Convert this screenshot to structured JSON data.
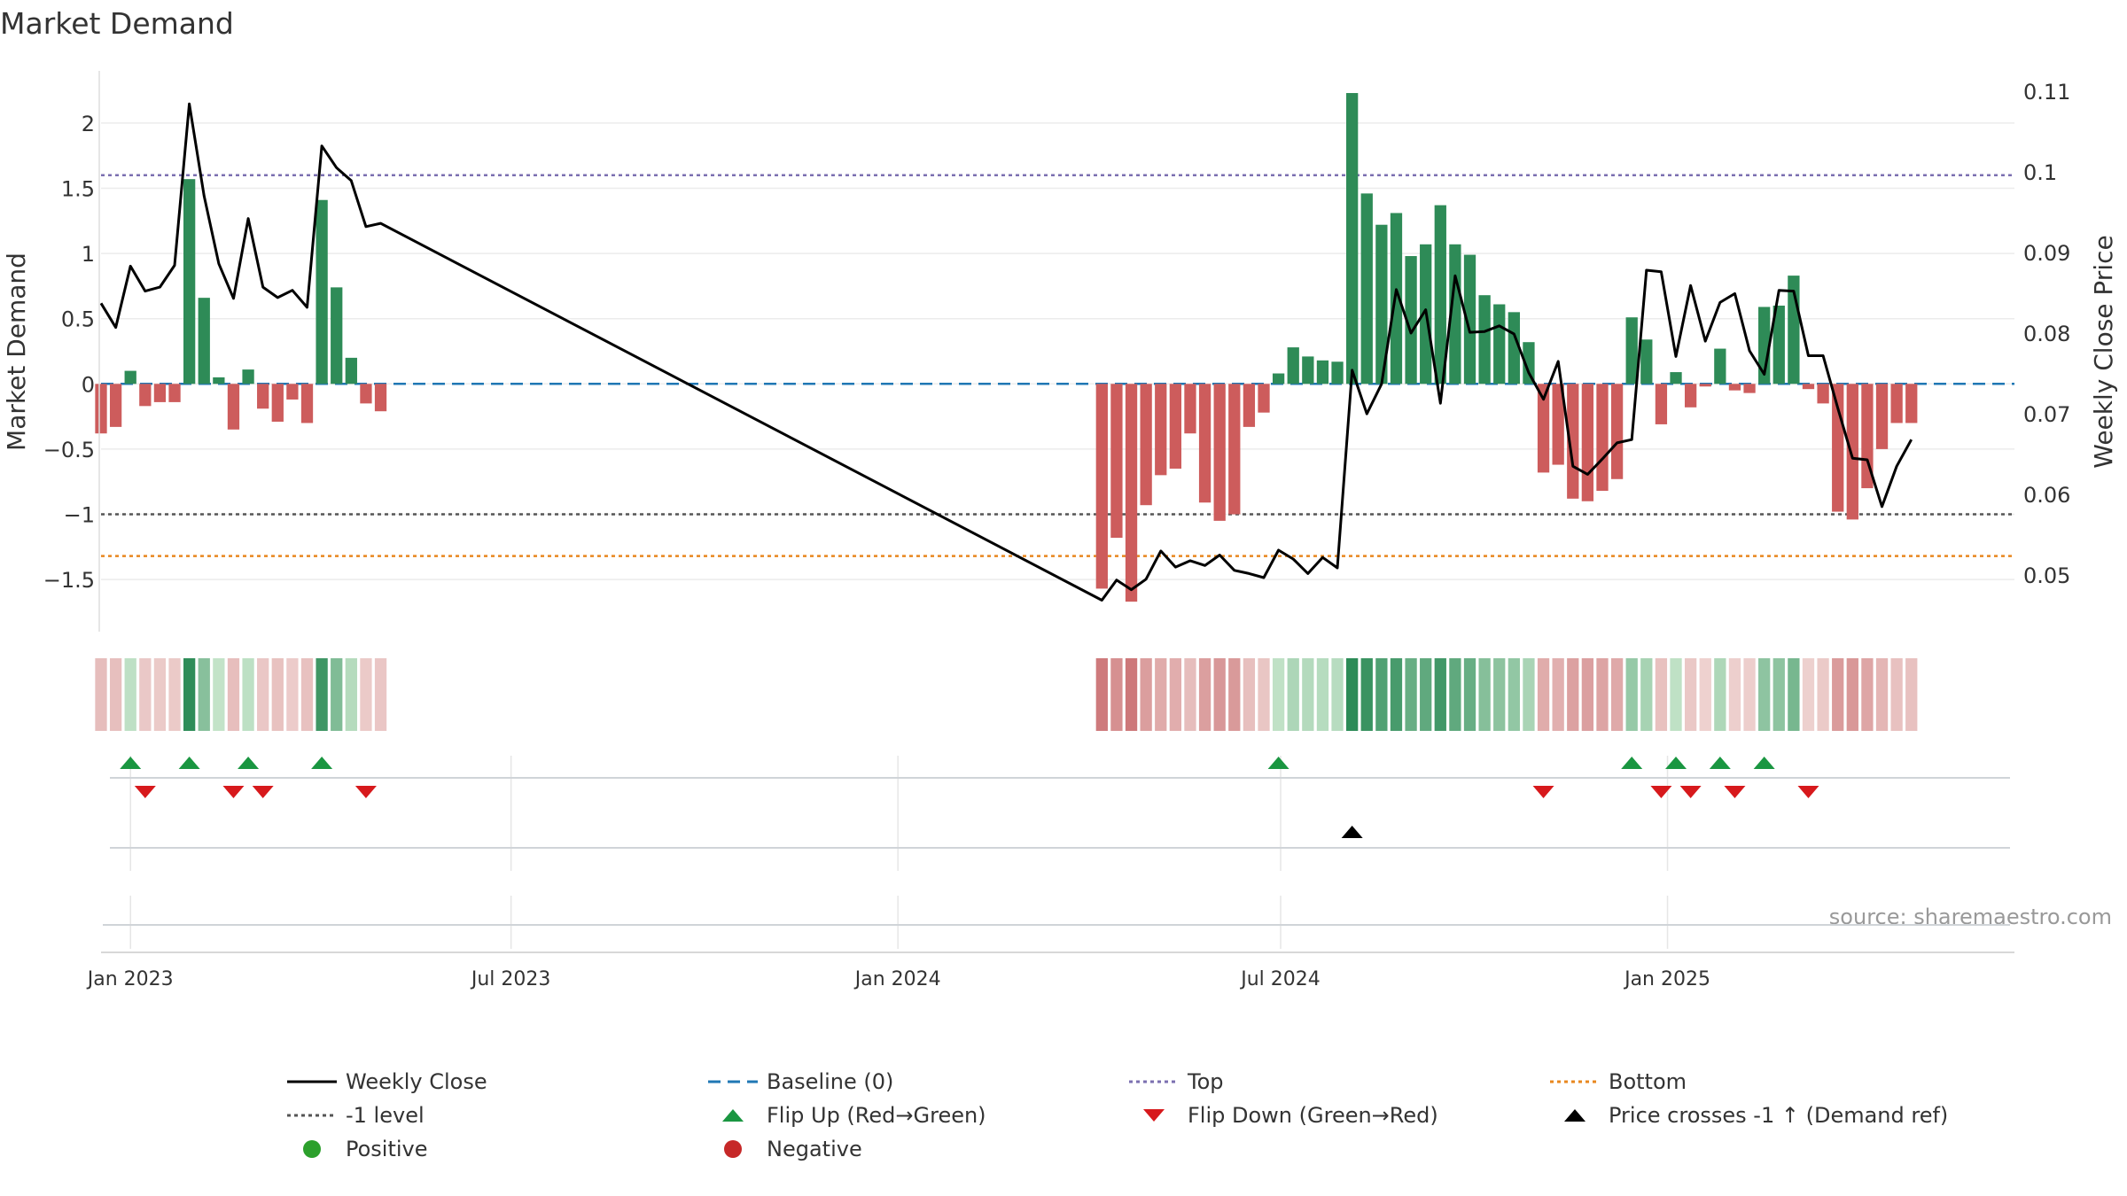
{
  "chart_data": {
    "type": "bar",
    "title": "Market Demand",
    "ylabel": "Market Demand",
    "y2label": "Weekly Close Price",
    "source": "source: sharemaestro.com",
    "ylim": [
      -1.9,
      2.4
    ],
    "y2lim": [
      0.043,
      0.1125
    ],
    "yticks": [
      {
        "v": 2,
        "label": "2"
      },
      {
        "v": 1.5,
        "label": "1.5"
      },
      {
        "v": 1,
        "label": "1"
      },
      {
        "v": 0.5,
        "label": "0.5"
      },
      {
        "v": 0,
        "label": "0"
      },
      {
        "v": -0.5,
        "label": "−0.5"
      },
      {
        "v": -1,
        "label": "−1"
      },
      {
        "v": -1.5,
        "label": "−1.5"
      }
    ],
    "y2ticks": [
      {
        "v": 0.11,
        "label": "0.11"
      },
      {
        "v": 0.1,
        "label": "0.1"
      },
      {
        "v": 0.09,
        "label": "0.09"
      },
      {
        "v": 0.08,
        "label": "0.08"
      },
      {
        "v": 0.07,
        "label": "0.07"
      },
      {
        "v": 0.06,
        "label": "0.06"
      },
      {
        "v": 0.05,
        "label": "0.05"
      }
    ],
    "xrange": [
      "2022-12-18",
      "2025-06-15"
    ],
    "xticks": [
      {
        "date": "2023-01-01",
        "label": "Jan 2023"
      },
      {
        "date": "2023-07-01",
        "label": "Jul 2023"
      },
      {
        "date": "2024-01-01",
        "label": "Jan 2024"
      },
      {
        "date": "2024-07-01",
        "label": "Jul 2024"
      },
      {
        "date": "2025-01-01",
        "label": "Jan 2025"
      }
    ],
    "reference_lines": [
      {
        "name": "Baseline (0)",
        "value": 0,
        "color": "#1f77b4",
        "style": "dashed"
      },
      {
        "name": "Top",
        "value": 1.6,
        "color": "#7b6fb0",
        "style": "dotted"
      },
      {
        "name": "-1 level",
        "value": -1,
        "color": "#555555",
        "style": "dotted"
      },
      {
        "name": "Bottom",
        "value": -1.32,
        "color": "#e8871e",
        "style": "dotted"
      }
    ],
    "colors": {
      "positive": "#2e8b57",
      "negative": "#cd5c5c",
      "close": "#000000",
      "flip_up": "#1a9641",
      "flip_down": "#d7191c",
      "cross": "#000000"
    },
    "weeks": [
      {
        "date": "2022-12-18",
        "demand": -0.38,
        "close": 0.0837
      },
      {
        "date": "2022-12-25",
        "demand": -0.33,
        "close": 0.0807
      },
      {
        "date": "2023-01-01",
        "demand": 0.1,
        "close": 0.0883
      },
      {
        "date": "2023-01-08",
        "demand": -0.17,
        "close": 0.0852
      },
      {
        "date": "2023-01-15",
        "demand": -0.14,
        "close": 0.0857
      },
      {
        "date": "2023-01-22",
        "demand": -0.14,
        "close": 0.0884
      },
      {
        "date": "2023-01-29",
        "demand": 1.57,
        "close": 0.1084
      },
      {
        "date": "2023-02-05",
        "demand": 0.66,
        "close": 0.097
      },
      {
        "date": "2023-02-12",
        "demand": 0.05,
        "close": 0.0886
      },
      {
        "date": "2023-02-19",
        "demand": -0.35,
        "close": 0.0843
      },
      {
        "date": "2023-02-26",
        "demand": 0.11,
        "close": 0.0942
      },
      {
        "date": "2023-03-05",
        "demand": -0.19,
        "close": 0.0857
      },
      {
        "date": "2023-03-12",
        "demand": -0.29,
        "close": 0.0844
      },
      {
        "date": "2023-03-19",
        "demand": -0.12,
        "close": 0.0853
      },
      {
        "date": "2023-03-26",
        "demand": -0.3,
        "close": 0.0832
      },
      {
        "date": "2023-04-02",
        "demand": 1.41,
        "close": 0.1032
      },
      {
        "date": "2023-04-09",
        "demand": 0.74,
        "close": 0.1005
      },
      {
        "date": "2023-04-16",
        "demand": 0.2,
        "close": 0.0989
      },
      {
        "date": "2023-04-23",
        "demand": -0.15,
        "close": 0.0932
      },
      {
        "date": "2023-04-30",
        "demand": -0.21,
        "close": 0.0936
      },
      {
        "date": "2024-04-07",
        "demand": -1.57,
        "close": 0.0469
      },
      {
        "date": "2024-04-14",
        "demand": -1.18,
        "close": 0.0494
      },
      {
        "date": "2024-04-21",
        "demand": -1.67,
        "close": 0.0482
      },
      {
        "date": "2024-04-28",
        "demand": -0.93,
        "close": 0.0495
      },
      {
        "date": "2024-05-05",
        "demand": -0.7,
        "close": 0.053
      },
      {
        "date": "2024-05-12",
        "demand": -0.65,
        "close": 0.051
      },
      {
        "date": "2024-05-19",
        "demand": -0.38,
        "close": 0.0518
      },
      {
        "date": "2024-05-26",
        "demand": -0.91,
        "close": 0.0512
      },
      {
        "date": "2024-06-02",
        "demand": -1.05,
        "close": 0.0525
      },
      {
        "date": "2024-06-09",
        "demand": -1.0,
        "close": 0.0506
      },
      {
        "date": "2024-06-16",
        "demand": -0.33,
        "close": 0.0502
      },
      {
        "date": "2024-06-23",
        "demand": -0.22,
        "close": 0.0497
      },
      {
        "date": "2024-06-30",
        "demand": 0.08,
        "close": 0.0531
      },
      {
        "date": "2024-07-07",
        "demand": 0.28,
        "close": 0.052
      },
      {
        "date": "2024-07-14",
        "demand": 0.21,
        "close": 0.0502
      },
      {
        "date": "2024-07-21",
        "demand": 0.18,
        "close": 0.0522
      },
      {
        "date": "2024-07-28",
        "demand": 0.17,
        "close": 0.0509
      },
      {
        "date": "2024-08-04",
        "demand": 2.23,
        "close": 0.0754
      },
      {
        "date": "2024-08-11",
        "demand": 1.46,
        "close": 0.07
      },
      {
        "date": "2024-08-18",
        "demand": 1.22,
        "close": 0.0737
      },
      {
        "date": "2024-08-25",
        "demand": 1.31,
        "close": 0.0854
      },
      {
        "date": "2024-09-01",
        "demand": 0.98,
        "close": 0.08
      },
      {
        "date": "2024-09-08",
        "demand": 1.07,
        "close": 0.0829
      },
      {
        "date": "2024-09-15",
        "demand": 1.37,
        "close": 0.0713
      },
      {
        "date": "2024-09-22",
        "demand": 1.07,
        "close": 0.0871
      },
      {
        "date": "2024-09-29",
        "demand": 0.99,
        "close": 0.0801
      },
      {
        "date": "2024-10-06",
        "demand": 0.68,
        "close": 0.0802
      },
      {
        "date": "2024-10-13",
        "demand": 0.61,
        "close": 0.0809
      },
      {
        "date": "2024-10-20",
        "demand": 0.55,
        "close": 0.0799
      },
      {
        "date": "2024-10-27",
        "demand": 0.32,
        "close": 0.0751
      },
      {
        "date": "2024-11-03",
        "demand": -0.68,
        "close": 0.0718
      },
      {
        "date": "2024-11-10",
        "demand": -0.62,
        "close": 0.0765
      },
      {
        "date": "2024-11-17",
        "demand": -0.88,
        "close": 0.0635
      },
      {
        "date": "2024-11-24",
        "demand": -0.9,
        "close": 0.0625
      },
      {
        "date": "2024-12-01",
        "demand": -0.82,
        "close": 0.0644
      },
      {
        "date": "2024-12-08",
        "demand": -0.73,
        "close": 0.0664
      },
      {
        "date": "2024-12-15",
        "demand": 0.51,
        "close": 0.0668
      },
      {
        "date": "2024-12-22",
        "demand": 0.34,
        "close": 0.0878
      },
      {
        "date": "2024-12-29",
        "demand": -0.31,
        "close": 0.0876
      },
      {
        "date": "2025-01-05",
        "demand": 0.09,
        "close": 0.0771
      },
      {
        "date": "2025-01-12",
        "demand": -0.18,
        "close": 0.0859
      },
      {
        "date": "2025-01-19",
        "demand": -0.02,
        "close": 0.079
      },
      {
        "date": "2025-01-26",
        "demand": 0.27,
        "close": 0.0838
      },
      {
        "date": "2025-02-02",
        "demand": -0.05,
        "close": 0.0849
      },
      {
        "date": "2025-02-09",
        "demand": -0.07,
        "close": 0.0778
      },
      {
        "date": "2025-02-16",
        "demand": 0.59,
        "close": 0.0749
      },
      {
        "date": "2025-02-23",
        "demand": 0.6,
        "close": 0.0853
      },
      {
        "date": "2025-03-02",
        "demand": 0.83,
        "close": 0.0852
      },
      {
        "date": "2025-03-09",
        "demand": -0.04,
        "close": 0.0772
      },
      {
        "date": "2025-03-16",
        "demand": -0.15,
        "close": 0.0772
      },
      {
        "date": "2025-03-23",
        "demand": -0.98,
        "close": 0.0707
      },
      {
        "date": "2025-03-30",
        "demand": -1.04,
        "close": 0.0645
      },
      {
        "date": "2025-04-06",
        "demand": -0.8,
        "close": 0.0643
      },
      {
        "date": "2025-04-13",
        "demand": -0.5,
        "close": 0.0585
      },
      {
        "date": "2025-04-20",
        "demand": -0.3,
        "close": 0.0635
      },
      {
        "date": "2025-04-27",
        "demand": -0.3,
        "close": 0.0668
      }
    ],
    "flip_up_dates": [
      "2023-01-01",
      "2023-01-29",
      "2023-02-26",
      "2023-04-02",
      "2024-06-30",
      "2024-12-15",
      "2025-01-05",
      "2025-01-26",
      "2025-02-16"
    ],
    "flip_down_dates": [
      "2023-01-08",
      "2023-02-19",
      "2023-03-05",
      "2023-04-23",
      "2024-11-03",
      "2024-12-29",
      "2025-01-12",
      "2025-02-02",
      "2025-03-09"
    ],
    "price_cross_dates": [
      "2024-08-04"
    ]
  },
  "legend": [
    {
      "label": "Weekly Close",
      "marker": "solid-line",
      "color": "#000000"
    },
    {
      "label": "Baseline (0)",
      "marker": "dashed-line",
      "color": "#1f77b4"
    },
    {
      "label": "Top",
      "marker": "dotted-line",
      "color": "#7b6fb0"
    },
    {
      "label": "Bottom",
      "marker": "dotted-line",
      "color": "#e8871e"
    },
    {
      "label": "-1 level",
      "marker": "dotted-line",
      "color": "#555555"
    },
    {
      "label": "Flip Up (Red→Green)",
      "marker": "triangle-up",
      "color": "#1a9641"
    },
    {
      "label": "Flip Down (Green→Red)",
      "marker": "triangle-down",
      "color": "#d7191c"
    },
    {
      "label": "Price crosses -1 ↑ (Demand ref)",
      "marker": "triangle-up",
      "color": "#000000"
    },
    {
      "label": "Positive",
      "marker": "circle",
      "color": "#2ca02c"
    },
    {
      "label": "Negative",
      "marker": "circle",
      "color": "#c62828"
    }
  ]
}
